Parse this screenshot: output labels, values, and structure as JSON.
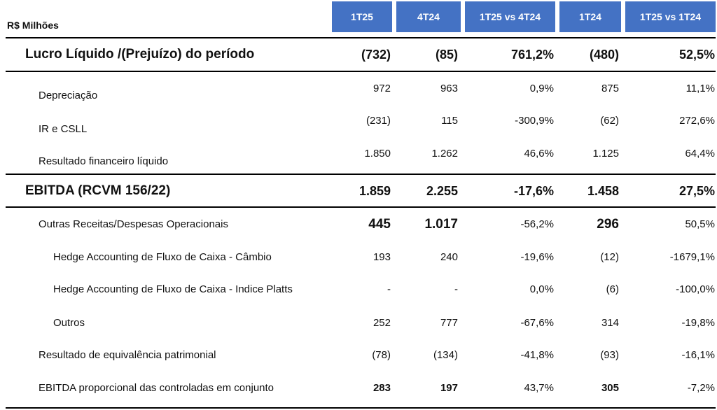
{
  "header": {
    "unit_label": "R$ Milhões",
    "columns": [
      "1T25",
      "4T24",
      "1T25 vs 4T24",
      "1T24",
      "1T25 vs 1T24"
    ]
  },
  "rows": [
    {
      "label": "Lucro Líquido /(Prejuízo) do período",
      "values": [
        "(732)",
        "(85)",
        "761,2%",
        "(480)",
        "52,5%"
      ]
    },
    {
      "label": "Depreciação",
      "values": [
        "972",
        "963",
        "0,9%",
        "875",
        "11,1%"
      ]
    },
    {
      "label": "IR e CSLL",
      "values": [
        "(231)",
        "115",
        "-300,9%",
        "(62)",
        "272,6%"
      ]
    },
    {
      "label": "Resultado financeiro líquido",
      "values": [
        "1.850",
        "1.262",
        "46,6%",
        "1.125",
        "64,4%"
      ]
    },
    {
      "label": "EBITDA (RCVM 156/22)",
      "values": [
        "1.859",
        "2.255",
        "-17,6%",
        "1.458",
        "27,5%"
      ]
    },
    {
      "label": "Outras Receitas/Despesas Operacionais",
      "values": [
        "445",
        "1.017",
        "-56,2%",
        "296",
        "50,5%"
      ]
    },
    {
      "label": "Hedge Accounting de Fluxo de Caixa - Câmbio",
      "values": [
        "193",
        "240",
        "-19,6%",
        "(12)",
        "-1679,1%"
      ]
    },
    {
      "label": "Hedge Accounting de Fluxo de Caixa - Indice Platts",
      "values": [
        "-",
        "-",
        "0,0%",
        "(6)",
        "-100,0%"
      ]
    },
    {
      "label": "Outros",
      "values": [
        "252",
        "777",
        "-67,6%",
        "314",
        "-19,8%"
      ]
    },
    {
      "label": "Resultado de equivalência patrimonial",
      "values": [
        "(78)",
        "(134)",
        "-41,8%",
        "(93)",
        "-16,1%"
      ]
    },
    {
      "label": "EBITDA proporcional das controladas em conjunto",
      "values": [
        "283",
        "197",
        "43,7%",
        "305",
        "-7,2%"
      ]
    }
  ],
  "colors": {
    "header_bg": "#4472c4",
    "header_text": "#ffffff",
    "rule": "#000000"
  }
}
